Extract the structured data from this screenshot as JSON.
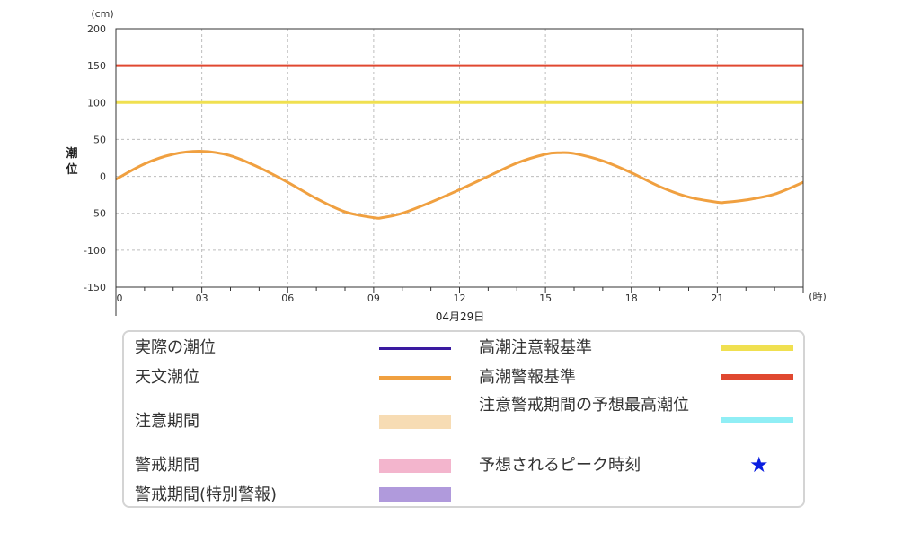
{
  "chart_data": {
    "type": "line",
    "ylabel": "潮位",
    "yunit": "(cm)",
    "xunit": "(時)",
    "date_label": "04月29日",
    "ylim": [
      -150,
      200
    ],
    "yticks": [
      200,
      150,
      100,
      50,
      0,
      -50,
      -100,
      -150
    ],
    "xlim": [
      0,
      24
    ],
    "xticks": [
      "0",
      "03",
      "06",
      "09",
      "12",
      "15",
      "18",
      "21"
    ],
    "grid": true,
    "series": [
      {
        "name": "天文潮位",
        "color": "#f0a040",
        "x": [
          0,
          1,
          2,
          3,
          4,
          5,
          6,
          7,
          8,
          9,
          9.3,
          10,
          11,
          12,
          13,
          14,
          15,
          15.5,
          16,
          17,
          18,
          19,
          20,
          21,
          21.3,
          22,
          23,
          24
        ],
        "y": [
          -4,
          17,
          30,
          34,
          28,
          12,
          -8,
          -30,
          -48,
          -56,
          -56,
          -50,
          -35,
          -18,
          0,
          18,
          30,
          32,
          31,
          21,
          5,
          -14,
          -28,
          -35,
          -35,
          -32,
          -24,
          -8
        ]
      },
      {
        "name": "高潮注意報基準",
        "color": "#f0e050",
        "y": 100
      },
      {
        "name": "高潮警報基準",
        "color": "#e04830",
        "y": 150
      }
    ]
  },
  "legend": {
    "actual": {
      "label": "実際の潮位",
      "color": "#3a1aa0"
    },
    "astronomical": {
      "label": "天文潮位",
      "color": "#f0a040"
    },
    "caution_period": {
      "label": "注意期間",
      "color": "#f7dcb4"
    },
    "warning_period": {
      "label": "警戒期間",
      "color": "#f3b5cd"
    },
    "special_warning_period": {
      "label": "警戒期間(特別警報)",
      "color": "#b09adc"
    },
    "advisory_standard": {
      "label": "高潮注意報基準",
      "color": "#f0e050"
    },
    "warning_standard": {
      "label": "高潮警報基準",
      "color": "#e04830"
    },
    "predicted_max": {
      "label": "注意警戒期間の予想最高潮位",
      "color": "#90eef5"
    },
    "peak_time": {
      "label": "予想されるピーク時刻",
      "symbol": "★",
      "color": "#0a1ee0"
    }
  }
}
